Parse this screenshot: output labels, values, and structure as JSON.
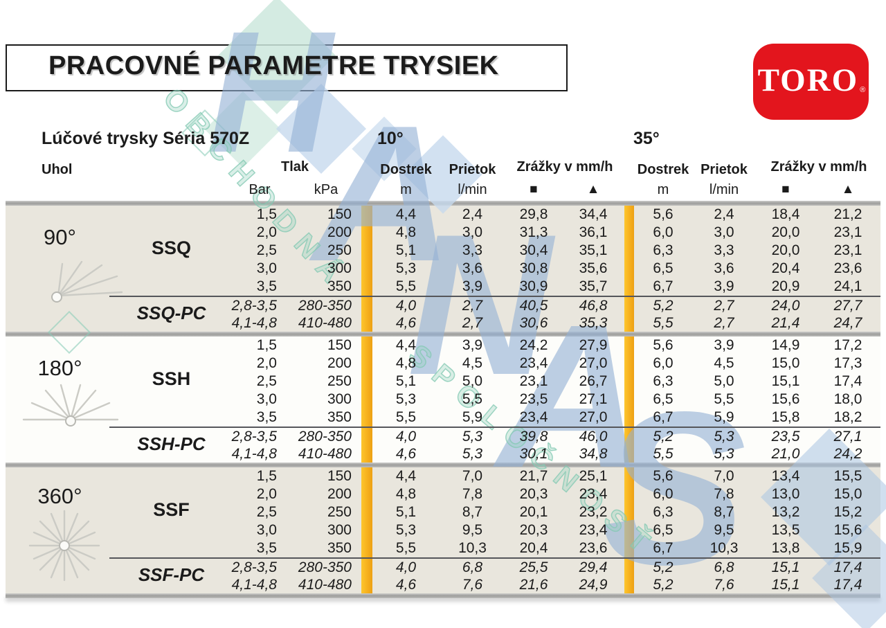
{
  "header": {
    "title": "PRACOVNÉ PARAMETRE TRYSIEK",
    "logo_text": "TORO",
    "logo_reg": "®",
    "subtitle": "Lúčové trysky Séria 570Z",
    "angle_10": "10°",
    "angle_35": "35°"
  },
  "columns": {
    "uhol": "Uhol",
    "tlak": "Tlak",
    "bar": "Bar",
    "kpa": "kPa",
    "dostrek": "Dostrek",
    "m": "m",
    "prietok": "Prietok",
    "lmin": "l/min",
    "zrazky": "Zrážky v mm/h",
    "square": "■",
    "triangle": "▲"
  },
  "colors": {
    "accent_yellow": "#f6b61e",
    "toro_red": "#e3151d",
    "section_beige": "#e9e6dd",
    "section_white": "#fdfdfa",
    "band_gray": "#a8a8a6"
  },
  "watermark": {
    "big_letters": [
      "H",
      "A",
      "N",
      "A",
      "S"
    ],
    "diagonal_words": [
      "OBCHODNÁ",
      "SPOLOČNOSŤ"
    ]
  },
  "sections": [
    {
      "angle": "90°",
      "icon": "spray-90-icon",
      "name": "SSQ",
      "pc_name": "SSQ-PC",
      "rows": [
        [
          "1,5",
          "150",
          "4,4",
          "2,4",
          "29,8",
          "34,4",
          "5,6",
          "2,4",
          "18,4",
          "21,2"
        ],
        [
          "2,0",
          "200",
          "4,8",
          "3,0",
          "31,3",
          "36,1",
          "6,0",
          "3,0",
          "20,0",
          "23,1"
        ],
        [
          "2,5",
          "250",
          "5,1",
          "3,3",
          "30,4",
          "35,1",
          "6,3",
          "3,3",
          "20,0",
          "23,1"
        ],
        [
          "3,0",
          "300",
          "5,3",
          "3,6",
          "30,8",
          "35,6",
          "6,5",
          "3,6",
          "20,4",
          "23,6"
        ],
        [
          "3,5",
          "350",
          "5,5",
          "3,9",
          "30,9",
          "35,7",
          "6,7",
          "3,9",
          "20,9",
          "24,1"
        ]
      ],
      "pc_rows": [
        [
          "2,8-3,5",
          "280-350",
          "4,0",
          "2,7",
          "40,5",
          "46,8",
          "5,2",
          "2,7",
          "24,0",
          "27,7"
        ],
        [
          "4,1-4,8",
          "410-480",
          "4,6",
          "2,7",
          "30,6",
          "35,3",
          "5,5",
          "2,7",
          "21,4",
          "24,7"
        ]
      ]
    },
    {
      "angle": "180°",
      "icon": "spray-180-icon",
      "name": "SSH",
      "pc_name": "SSH-PC",
      "rows": [
        [
          "1,5",
          "150",
          "4,4",
          "3,9",
          "24,2",
          "27,9",
          "5,6",
          "3,9",
          "14,9",
          "17,2"
        ],
        [
          "2,0",
          "200",
          "4,8",
          "4,5",
          "23,4",
          "27,0",
          "6,0",
          "4,5",
          "15,0",
          "17,3"
        ],
        [
          "2,5",
          "250",
          "5,1",
          "5,0",
          "23,1",
          "26,7",
          "6,3",
          "5,0",
          "15,1",
          "17,4"
        ],
        [
          "3,0",
          "300",
          "5,3",
          "5,5",
          "23,5",
          "27,1",
          "6,5",
          "5,5",
          "15,6",
          "18,0"
        ],
        [
          "3,5",
          "350",
          "5,5",
          "5,9",
          "23,4",
          "27,0",
          "6,7",
          "5,9",
          "15,8",
          "18,2"
        ]
      ],
      "pc_rows": [
        [
          "2,8-3,5",
          "280-350",
          "4,0",
          "5,3",
          "39,8",
          "46,0",
          "5,2",
          "5,3",
          "23,5",
          "27,1"
        ],
        [
          "4,1-4,8",
          "410-480",
          "4,6",
          "5,3",
          "30,1",
          "34,8",
          "5,5",
          "5,3",
          "21,0",
          "24,2"
        ]
      ]
    },
    {
      "angle": "360°",
      "icon": "spray-360-icon",
      "name": "SSF",
      "pc_name": "SSF-PC",
      "rows": [
        [
          "1,5",
          "150",
          "4,4",
          "7,0",
          "21,7",
          "25,1",
          "5,6",
          "7,0",
          "13,4",
          "15,5"
        ],
        [
          "2,0",
          "200",
          "4,8",
          "7,8",
          "20,3",
          "23,4",
          "6,0",
          "7,8",
          "13,0",
          "15,0"
        ],
        [
          "2,5",
          "250",
          "5,1",
          "8,7",
          "20,1",
          "23,2",
          "6,3",
          "8,7",
          "13,2",
          "15,2"
        ],
        [
          "3,0",
          "300",
          "5,3",
          "9,5",
          "20,3",
          "23,4",
          "6,5",
          "9,5",
          "13,5",
          "15,6"
        ],
        [
          "3,5",
          "350",
          "5,5",
          "10,3",
          "20,4",
          "23,6",
          "6,7",
          "10,3",
          "13,8",
          "15,9"
        ]
      ],
      "pc_rows": [
        [
          "2,8-3,5",
          "280-350",
          "4,0",
          "6,8",
          "25,5",
          "29,4",
          "5,2",
          "6,8",
          "15,1",
          "17,4"
        ],
        [
          "4,1-4,8",
          "410-480",
          "4,6",
          "7,6",
          "21,6",
          "24,9",
          "5,2",
          "7,6",
          "15,1",
          "17,4"
        ]
      ]
    }
  ]
}
